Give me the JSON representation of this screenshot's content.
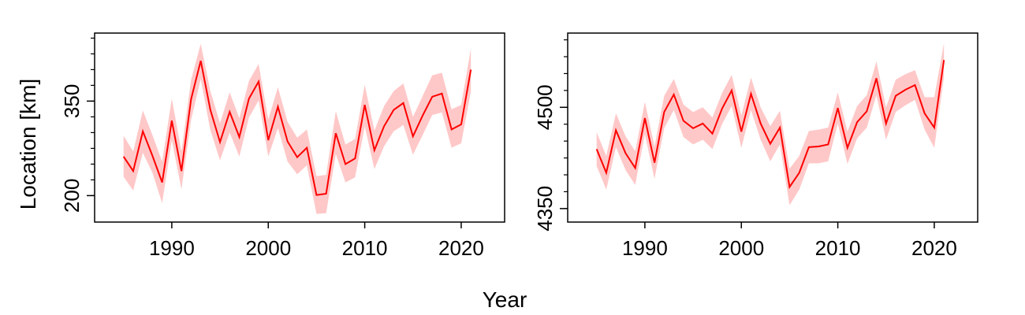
{
  "xlabel": "Year",
  "ylabel": "Location [km]",
  "chart_data": [
    {
      "type": "line",
      "xlim": [
        1982,
        2024.5
      ],
      "ylim": [
        158,
        458
      ],
      "x_ticks": [
        1990,
        2000,
        2010,
        2020
      ],
      "y_major_ticks": [
        200,
        350
      ],
      "y_minor_ticks": [
        200,
        225,
        250,
        275,
        300,
        325,
        350,
        375,
        400,
        425,
        450
      ],
      "grid": false,
      "color": "#ff0000",
      "band_color": "#ffc8c8",
      "x": [
        1985,
        1986,
        1987,
        1988,
        1989,
        1990,
        1991,
        1992,
        1993,
        1994,
        1995,
        1996,
        1997,
        1998,
        1999,
        2000,
        2001,
        2002,
        2003,
        2004,
        2005,
        2006,
        2007,
        2008,
        2009,
        2010,
        2011,
        2012,
        2013,
        2014,
        2015,
        2016,
        2017,
        2018,
        2019,
        2020,
        2021
      ],
      "y": [
        262,
        239,
        302,
        263,
        221,
        319,
        239,
        353,
        414,
        336,
        285,
        333,
        293,
        354,
        381,
        288,
        341,
        286,
        261,
        276,
        201,
        203,
        299,
        250,
        259,
        344,
        272,
        310,
        336,
        347,
        294,
        327,
        357,
        362,
        305,
        313,
        400
      ],
      "lower": [
        230,
        208,
        268,
        236,
        188,
        288,
        210,
        320,
        385,
        304,
        256,
        300,
        262,
        324,
        351,
        262,
        307,
        254,
        234,
        248,
        171,
        172,
        266,
        221,
        229,
        310,
        242,
        278,
        302,
        312,
        265,
        296,
        328,
        332,
        276,
        283,
        365
      ],
      "upper": [
        295,
        270,
        335,
        296,
        254,
        354,
        270,
        384,
        441,
        366,
        315,
        364,
        323,
        382,
        409,
        321,
        372,
        317,
        292,
        305,
        231,
        233,
        334,
        281,
        290,
        376,
        303,
        342,
        366,
        378,
        325,
        358,
        391,
        395,
        337,
        344,
        433
      ]
    },
    {
      "type": "line",
      "xlim": [
        1982,
        2024.5
      ],
      "ylim": [
        4330,
        4610
      ],
      "x_ticks": [
        1990,
        2000,
        2010,
        2020
      ],
      "y_major_ticks": [
        4350,
        4500
      ],
      "y_minor_ticks": [
        4350,
        4375,
        4400,
        4425,
        4450,
        4475,
        4500,
        4525,
        4550,
        4575,
        4600
      ],
      "grid": false,
      "color": "#ff0000",
      "band_color": "#ffc8c8",
      "x": [
        1985,
        1986,
        1987,
        1988,
        1989,
        1990,
        1991,
        1992,
        1993,
        1994,
        1995,
        1996,
        1997,
        1998,
        1999,
        2000,
        2001,
        2002,
        2003,
        2004,
        2005,
        2006,
        2007,
        2008,
        2009,
        2010,
        2011,
        2012,
        2013,
        2014,
        2015,
        2016,
        2017,
        2018,
        2019,
        2020,
        2021
      ],
      "y": [
        4438,
        4403,
        4466,
        4432,
        4410,
        4484,
        4418,
        4493,
        4519,
        4480,
        4469,
        4476,
        4461,
        4498,
        4525,
        4464,
        4520,
        4476,
        4446,
        4470,
        4382,
        4403,
        4441,
        4442,
        4445,
        4499,
        4440,
        4478,
        4494,
        4543,
        4476,
        4517,
        4526,
        4533,
        4491,
        4470,
        4570
      ],
      "lower": [
        4413,
        4378,
        4441,
        4407,
        4385,
        4460,
        4394,
        4469,
        4496,
        4456,
        4445,
        4452,
        4438,
        4475,
        4502,
        4440,
        4496,
        4452,
        4420,
        4445,
        4355,
        4378,
        4417,
        4417,
        4420,
        4476,
        4416,
        4454,
        4470,
        4518,
        4452,
        4493,
        4503,
        4511,
        4467,
        4440,
        4545
      ],
      "upper": [
        4463,
        4428,
        4491,
        4457,
        4435,
        4508,
        4442,
        4517,
        4542,
        4504,
        4493,
        4500,
        4485,
        4521,
        4548,
        4488,
        4544,
        4500,
        4472,
        4495,
        4409,
        4428,
        4465,
        4467,
        4470,
        4522,
        4464,
        4502,
        4518,
        4568,
        4500,
        4541,
        4549,
        4555,
        4515,
        4515,
        4595
      ]
    }
  ]
}
